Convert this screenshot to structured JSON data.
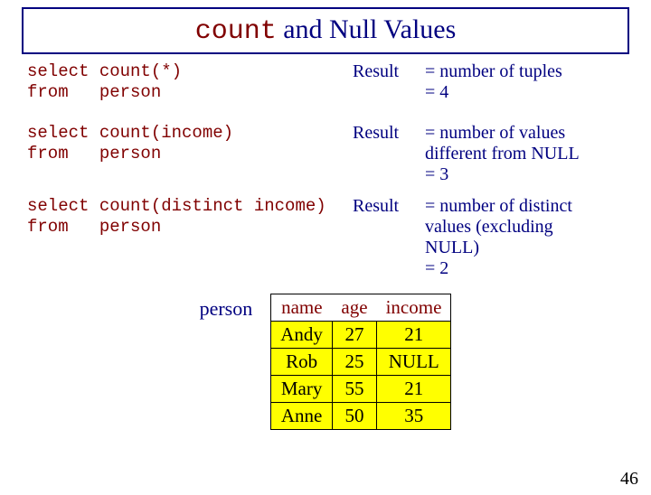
{
  "title": {
    "mono": "count",
    "rest": " and Null Values"
  },
  "queries": [
    {
      "code": "select count(*)\nfrom   person",
      "label": "Result",
      "desc": "= number of tuples\n= 4"
    },
    {
      "code": "select count(income)\nfrom   person",
      "label": "Result",
      "desc": "= number of values\n   different from NULL\n= 3"
    },
    {
      "code": "select count(distinct income)\nfrom   person",
      "label": "Result",
      "desc": "= number of distinct\n   values (excluding\n   NULL)\n= 2"
    }
  ],
  "table": {
    "label": "person",
    "header_bg": "#ffffff",
    "body_bg": "#ffff00",
    "columns": [
      "name",
      "age",
      "income"
    ],
    "rows": [
      [
        "Andy",
        "27",
        "21"
      ],
      [
        "Rob",
        "25",
        "NULL"
      ],
      [
        "Mary",
        "55",
        "21"
      ],
      [
        "Anne",
        "50",
        "35"
      ]
    ]
  },
  "slide_number": "46"
}
